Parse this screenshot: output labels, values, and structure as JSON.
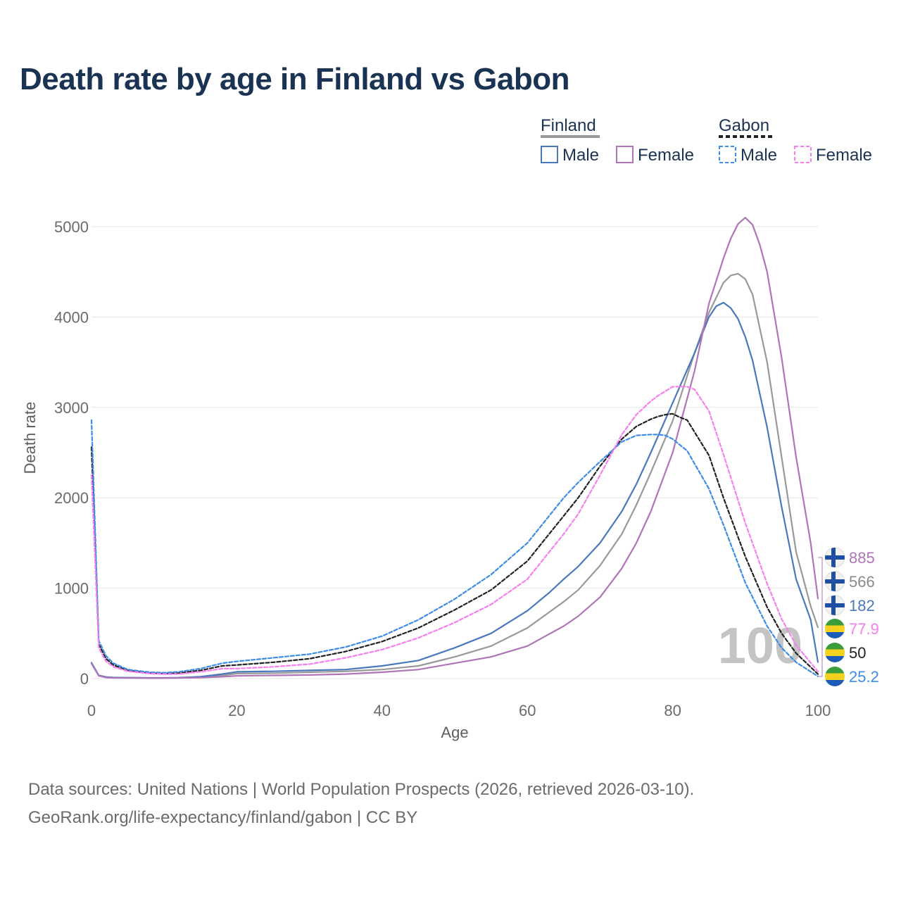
{
  "title": "Death rate by age in Finland vs Gabon",
  "legend": {
    "groups": [
      {
        "name": "Finland",
        "line_style": "solid",
        "line_color": "#999999",
        "items": [
          {
            "label": "Male",
            "color": "#4a78bd"
          },
          {
            "label": "Female",
            "color": "#b074b8"
          }
        ]
      },
      {
        "name": "Gabon",
        "line_style": "dashed",
        "line_color": "#222222",
        "items": [
          {
            "label": "Male",
            "color": "#3d8ce6"
          },
          {
            "label": "Female",
            "color": "#f77ff0"
          }
        ]
      }
    ]
  },
  "watermark": "100",
  "end_labels": [
    {
      "value": "885",
      "color": "#b074b8",
      "flag": "finland-flag"
    },
    {
      "value": "566",
      "color": "#8a8a8a",
      "flag": "finland-flag"
    },
    {
      "value": "182",
      "color": "#4a78bd",
      "flag": "finland-flag"
    },
    {
      "value": "77.9",
      "color": "#f77ff0",
      "flag": "gabon-flag"
    },
    {
      "value": "50",
      "color": "#222222",
      "flag": "gabon-flag"
    },
    {
      "value": "25.2",
      "color": "#3d8ce6",
      "flag": "gabon-flag"
    }
  ],
  "sources": {
    "line1": "Data sources: United Nations | World Population Prospects (2026, retrieved 2026-03-10).",
    "line2": "GeoRank.org/life-expectancy/finland/gabon | CC BY"
  },
  "chart_data": {
    "type": "line",
    "title": "Death rate by age in Finland vs Gabon",
    "xlabel": "Age",
    "ylabel": "Death rate",
    "xlim": [
      0,
      100
    ],
    "ylim": [
      0,
      5000
    ],
    "xticks": [
      0,
      20,
      40,
      60,
      80,
      100
    ],
    "yticks": [
      0,
      1000,
      2000,
      3000,
      4000,
      5000
    ],
    "grid": true,
    "series": [
      {
        "name": "Finland Total",
        "color": "#999999",
        "dash": false,
        "x": [
          0,
          1,
          2,
          3,
          5,
          8,
          10,
          12,
          15,
          18,
          20,
          25,
          30,
          35,
          40,
          45,
          50,
          55,
          60,
          65,
          67,
          70,
          73,
          75,
          77,
          80,
          83,
          85,
          87,
          88,
          89,
          90,
          91,
          93,
          95,
          97,
          99,
          100
        ],
        "y": [
          170,
          30,
          15,
          10,
          8,
          7,
          7,
          8,
          15,
          35,
          55,
          60,
          70,
          80,
          100,
          140,
          240,
          360,
          560,
          850,
          980,
          1250,
          1600,
          1920,
          2280,
          2850,
          3600,
          4050,
          4380,
          4460,
          4480,
          4420,
          4250,
          3500,
          2450,
          1400,
          800,
          566
        ]
      },
      {
        "name": "Finland Male",
        "color": "#4a78bd",
        "dash": false,
        "x": [
          0,
          1,
          2,
          3,
          5,
          8,
          10,
          12,
          15,
          18,
          20,
          25,
          30,
          35,
          40,
          45,
          50,
          55,
          60,
          63,
          65,
          67,
          70,
          73,
          75,
          77,
          80,
          83,
          85,
          86,
          87,
          88,
          89,
          90,
          91,
          93,
          95,
          97,
          99,
          100
        ],
        "y": [
          175,
          35,
          18,
          12,
          10,
          8,
          8,
          10,
          20,
          50,
          75,
          80,
          90,
          100,
          140,
          200,
          340,
          500,
          750,
          950,
          1100,
          1240,
          1500,
          1850,
          2150,
          2500,
          3050,
          3600,
          4000,
          4120,
          4160,
          4100,
          3980,
          3780,
          3520,
          2780,
          1900,
          1100,
          650,
          182
        ]
      },
      {
        "name": "Finland Female",
        "color": "#b074b8",
        "dash": false,
        "x": [
          0,
          1,
          2,
          3,
          5,
          8,
          10,
          12,
          15,
          18,
          20,
          25,
          30,
          35,
          40,
          45,
          50,
          55,
          60,
          65,
          67,
          70,
          73,
          75,
          77,
          80,
          83,
          85,
          87,
          88,
          89,
          90,
          91,
          92,
          93,
          95,
          97,
          99,
          100
        ],
        "y": [
          165,
          30,
          12,
          8,
          6,
          5,
          5,
          6,
          10,
          20,
          30,
          35,
          40,
          50,
          70,
          100,
          170,
          240,
          360,
          580,
          690,
          900,
          1220,
          1500,
          1850,
          2500,
          3400,
          4150,
          4650,
          4870,
          5030,
          5100,
          5020,
          4800,
          4500,
          3550,
          2450,
          1500,
          885
        ]
      },
      {
        "name": "Gabon Total",
        "color": "#222222",
        "dash": true,
        "x": [
          0,
          1,
          2,
          3,
          5,
          8,
          10,
          12,
          15,
          18,
          20,
          25,
          30,
          35,
          40,
          45,
          50,
          55,
          60,
          65,
          67,
          70,
          73,
          75,
          77,
          78,
          79,
          80,
          81,
          82,
          85,
          87,
          90,
          93,
          95,
          97,
          100
        ],
        "y": [
          2560,
          380,
          220,
          150,
          90,
          60,
          55,
          60,
          90,
          140,
          150,
          180,
          220,
          300,
          410,
          560,
          760,
          980,
          1300,
          1800,
          2000,
          2350,
          2650,
          2790,
          2870,
          2900,
          2920,
          2930,
          2890,
          2860,
          2470,
          2000,
          1350,
          790,
          500,
          280,
          50
        ]
      },
      {
        "name": "Gabon Male",
        "color": "#3d8ce6",
        "dash": true,
        "x": [
          0,
          1,
          2,
          3,
          5,
          8,
          10,
          12,
          15,
          18,
          20,
          25,
          30,
          35,
          40,
          45,
          50,
          55,
          60,
          65,
          67,
          70,
          73,
          75,
          77,
          78,
          79,
          80,
          82,
          85,
          87,
          90,
          93,
          95,
          97,
          100
        ],
        "y": [
          2860,
          420,
          250,
          170,
          100,
          70,
          65,
          75,
          110,
          170,
          190,
          230,
          270,
          350,
          470,
          650,
          880,
          1150,
          1500,
          2000,
          2170,
          2400,
          2620,
          2690,
          2700,
          2700,
          2690,
          2650,
          2520,
          2100,
          1700,
          1060,
          580,
          340,
          180,
          25.2
        ]
      },
      {
        "name": "Gabon Female",
        "color": "#f77ff0",
        "dash": true,
        "x": [
          0,
          1,
          2,
          3,
          5,
          8,
          10,
          12,
          15,
          18,
          20,
          25,
          30,
          35,
          40,
          45,
          50,
          55,
          60,
          65,
          67,
          70,
          73,
          75,
          77,
          78,
          79,
          80,
          81,
          82,
          83,
          85,
          87,
          90,
          93,
          95,
          97,
          100
        ],
        "y": [
          2250,
          340,
          190,
          130,
          80,
          55,
          50,
          50,
          75,
          110,
          110,
          130,
          160,
          230,
          320,
          450,
          620,
          820,
          1100,
          1600,
          1820,
          2250,
          2700,
          2920,
          3070,
          3130,
          3180,
          3230,
          3230,
          3230,
          3200,
          2960,
          2480,
          1720,
          1050,
          660,
          370,
          77.9
        ]
      }
    ]
  }
}
